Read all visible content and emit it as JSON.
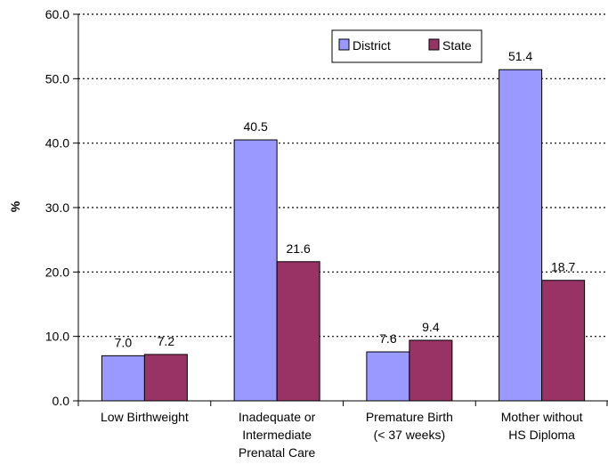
{
  "chart_data": {
    "type": "bar",
    "categories": [
      [
        "Low Birthweight"
      ],
      [
        "Inadequate or",
        "Intermediate",
        "Prenatal   Care"
      ],
      [
        "Premature Birth",
        "(< 37 weeks)"
      ],
      [
        "Mother without",
        "HS Diploma"
      ]
    ],
    "series": [
      {
        "name": "District",
        "values": [
          7.0,
          40.5,
          7.6,
          51.4
        ],
        "color": "#9999ff",
        "labels": [
          "7.0",
          "40.5",
          "7.6",
          "51.4"
        ]
      },
      {
        "name": "State",
        "values": [
          7.2,
          21.6,
          9.4,
          18.7
        ],
        "color": "#993366",
        "labels": [
          "7.2",
          "21.6",
          "9.4",
          "18.7"
        ]
      }
    ],
    "ylabel": "%",
    "ylim": [
      0,
      60
    ],
    "yticks": [
      "0.0",
      "10.0",
      "20.0",
      "30.0",
      "40.0",
      "50.0",
      "60.0"
    ],
    "grid": "horizontal-dotted",
    "legend": "top-right"
  }
}
